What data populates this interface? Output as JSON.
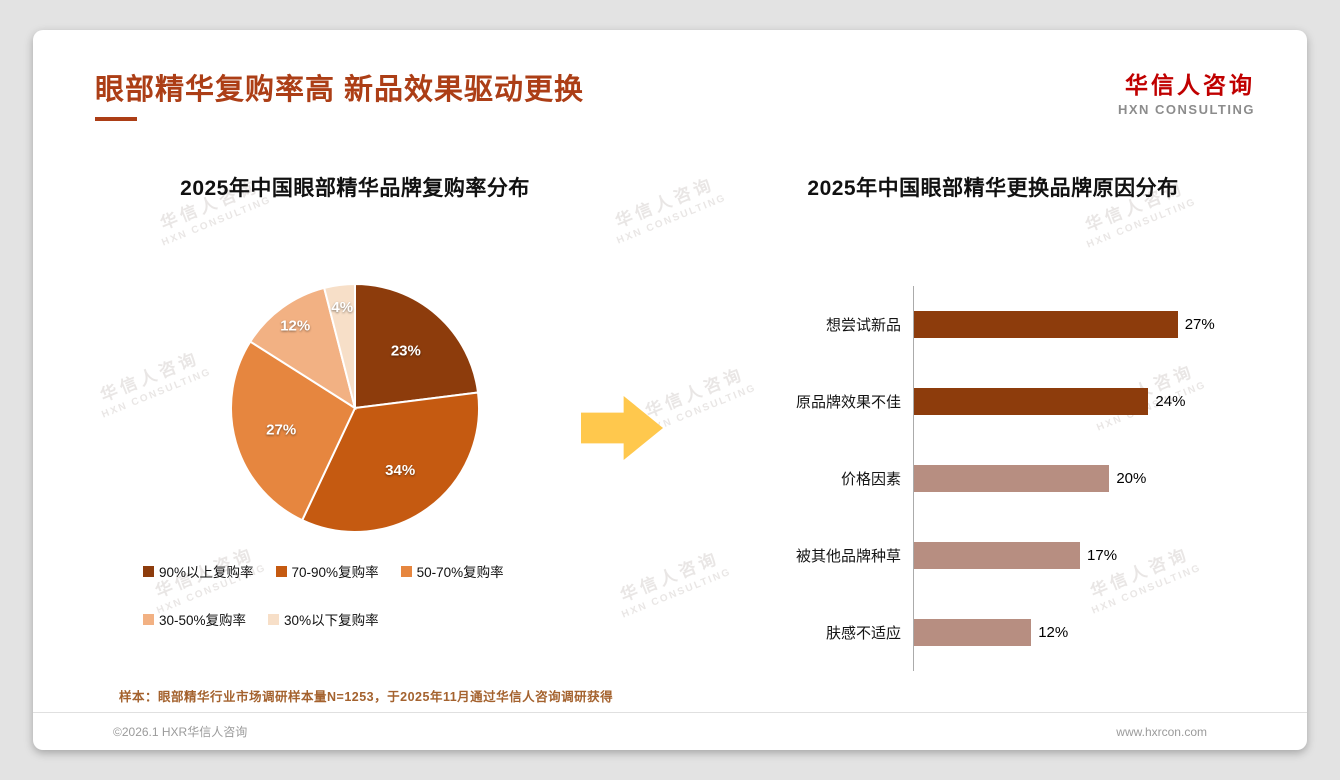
{
  "page": {
    "title": "眼部精华复购率高 新品效果驱动更换",
    "logo": {
      "cn": "华信人咨询",
      "en": "HXN CONSULTING"
    },
    "watermark": {
      "line1": "华信人咨询",
      "line2": "HXN CONSULTING"
    },
    "footnote": "样本：眼部精华行业市场调研样本量N=1253，于2025年11月通过华信人咨询调研获得",
    "footer": {
      "left": "©2026.1 HXR华信人咨询",
      "right": "www.hxrcon.com"
    }
  },
  "chart_data": [
    {
      "type": "pie",
      "title": "2025年中国眼部精华品牌复购率分布",
      "labels": [
        "90%以上复购率",
        "70-90%复购率",
        "50-70%复购率",
        "30-50%复购率",
        "30%以下复购率"
      ],
      "values": [
        23,
        34,
        27,
        12,
        4
      ],
      "data_labels": [
        "23%",
        "34%",
        "27%",
        "12%",
        "4%"
      ],
      "colors": [
        "#8D3C0C",
        "#C55A11",
        "#E6863F",
        "#F2B183",
        "#F7DFC8"
      ],
      "legend_position": "bottom"
    },
    {
      "type": "bar",
      "orientation": "horizontal",
      "title": "2025年中国眼部精华更换品牌原因分布",
      "categories": [
        "想尝试新品",
        "原品牌效果不佳",
        "价格因素",
        "被其他品牌种草",
        "肤感不适应"
      ],
      "values": [
        27,
        24,
        20,
        17,
        12
      ],
      "data_labels": [
        "27%",
        "24%",
        "20%",
        "17%",
        "12%"
      ],
      "colors": [
        "#8D3C0C",
        "#8D3C0C",
        "#B78E81",
        "#B78E81",
        "#B78E81"
      ],
      "xlim": [
        0,
        30
      ],
      "grid": false,
      "legend_position": "none"
    }
  ]
}
